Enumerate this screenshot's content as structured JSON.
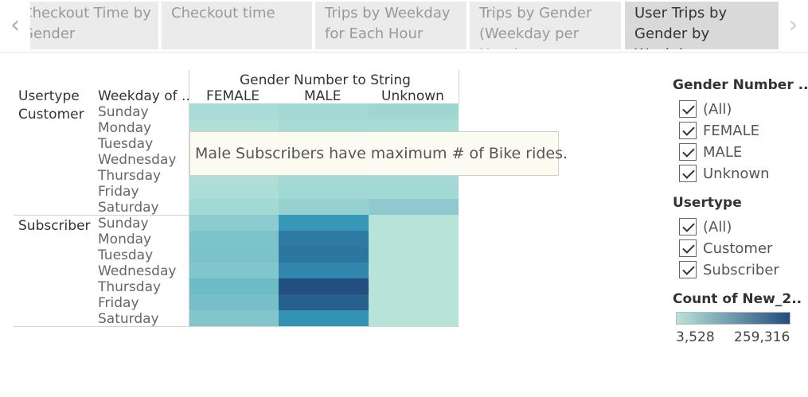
{
  "tabs": {
    "prev_icon": "chevron-left-icon",
    "next_icon": "chevron-right-icon",
    "items": [
      {
        "label_line1": "Checkout Time by",
        "label_line2": "Gender",
        "active": false
      },
      {
        "label_line1": "Checkout time",
        "label_line2": "",
        "active": false
      },
      {
        "label_line1": "Trips by Weekday",
        "label_line2": "for Each Hour",
        "active": false
      },
      {
        "label_line1": "Trips by Gender",
        "label_line2": "(Weekday per Hour)",
        "active": false
      },
      {
        "label_line1": "User Trips by",
        "label_line2": "Gender by Weekday",
        "active": true
      }
    ]
  },
  "crosstab": {
    "column_group_title": "Gender Number to String",
    "row_header_1": "Usertype",
    "row_header_2": "Weekday of ..",
    "columns": [
      "FEMALE",
      "MALE",
      "Unknown"
    ],
    "groups": [
      {
        "label": "Customer",
        "days": [
          "Sunday",
          "Monday",
          "Tuesday",
          "Wednesday",
          "Thursday",
          "Friday",
          "Saturday"
        ]
      },
      {
        "label": "Subscriber",
        "days": [
          "Sunday",
          "Monday",
          "Tuesday",
          "Wednesday",
          "Thursday",
          "Friday",
          "Saturday"
        ]
      }
    ],
    "cell_colors": [
      [
        "#a9dcd6",
        "#a3d9d4",
        "#9fd6d2"
      ],
      [
        "#b0dfd8",
        "#a6dad4",
        "#a7dbd5"
      ],
      [
        "#b0dfd8",
        "#a6dad4",
        "#a7dbd5"
      ],
      [
        "#b0dfd8",
        "#a6dad4",
        "#a7dbd5"
      ],
      [
        "#aedfd8",
        "#a4d9d4",
        "#a6dad4"
      ],
      [
        "#acded7",
        "#a1d8d3",
        "#a3d9d4"
      ],
      [
        "#a3d9d4",
        "#94d1cf",
        "#8fc9cf"
      ],
      [
        "#8cccd0",
        "#3698b7",
        "#b8e3d9"
      ],
      [
        "#7dc3cb",
        "#2d7ba4",
        "#b8e3d9"
      ],
      [
        "#7cc2cb",
        "#2b77a1",
        "#b8e3d9"
      ],
      [
        "#81c6cc",
        "#3186ad",
        "#b8e3d9"
      ],
      [
        "#6ebbc8",
        "#224e80",
        "#b8e3d9"
      ],
      [
        "#76bfc9",
        "#275f8e",
        "#b8e3d9"
      ],
      [
        "#82c6cc",
        "#3393b5",
        "#b8e3d9"
      ]
    ]
  },
  "annotation": {
    "text": "Male Subscribers have maximum # of Bike rides."
  },
  "filters": {
    "gender_title": "Gender Number ..",
    "gender_options": [
      "(All)",
      "FEMALE",
      "MALE",
      "Unknown"
    ],
    "usertype_title": "Usertype",
    "usertype_options": [
      "(All)",
      "Customer",
      "Subscriber"
    ]
  },
  "legend": {
    "title": "Count of New_2..",
    "min_label": "3,528",
    "max_label": "259,316",
    "color_low": "#b8e3d9",
    "color_high": "#224e80"
  }
}
